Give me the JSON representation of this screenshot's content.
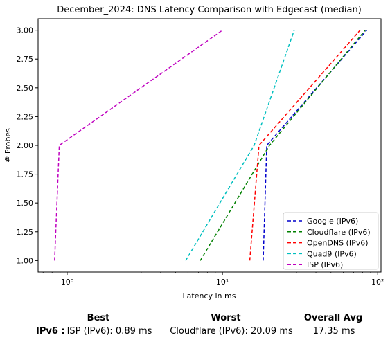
{
  "chart_data": {
    "type": "line",
    "title": "December_2024: DNS Latency Comparison with Edgecast (median)",
    "xlabel": "Latency in ms",
    "ylabel": "# Probes",
    "xscale": "log",
    "xlim": [
      0.65,
      105
    ],
    "ylim": [
      0.9,
      3.1
    ],
    "xticks": [
      1,
      10,
      100
    ],
    "xtick_labels": [
      "10⁰",
      "10¹",
      "10²"
    ],
    "yticks": [
      1.0,
      1.25,
      1.5,
      1.75,
      2.0,
      2.25,
      2.5,
      2.75,
      3.0
    ],
    "ytick_labels": [
      "1.00",
      "1.25",
      "1.50",
      "1.75",
      "2.00",
      "2.25",
      "2.50",
      "2.75",
      "3.00"
    ],
    "grid": false,
    "legend_position": "lower-right",
    "line_style": "dashed",
    "series": [
      {
        "name": "Google (IPv6)",
        "color": "#0000cc",
        "points": [
          [
            18.3,
            1.0
          ],
          [
            19.3,
            2.0
          ],
          [
            85.0,
            3.0
          ]
        ]
      },
      {
        "name": "Cloudflare (IPv6)",
        "color": "#008000",
        "points": [
          [
            7.2,
            1.0
          ],
          [
            20.1,
            2.0
          ],
          [
            83.0,
            3.0
          ]
        ]
      },
      {
        "name": "OpenDNS (IPv6)",
        "color": "#ff0000",
        "points": [
          [
            15.0,
            1.0
          ],
          [
            17.2,
            2.0
          ],
          [
            77.0,
            3.0
          ]
        ]
      },
      {
        "name": "Quad9 (IPv6)",
        "color": "#00bfbf",
        "points": [
          [
            5.8,
            1.0
          ],
          [
            16.0,
            2.0
          ],
          [
            29.0,
            3.0
          ]
        ]
      },
      {
        "name": "ISP (IPv6)",
        "color": "#bf00bf",
        "points": [
          [
            0.83,
            1.0
          ],
          [
            0.89,
            2.0
          ],
          [
            10.0,
            3.0
          ]
        ]
      }
    ]
  },
  "summary": {
    "best_header": "Best",
    "worst_header": "Worst",
    "avg_header": "Overall Avg",
    "row_label": "IPv6 :",
    "best_value": "ISP (IPv6): 0.89 ms",
    "worst_value": "Cloudflare (IPv6): 20.09 ms",
    "avg_value": "17.35 ms"
  }
}
